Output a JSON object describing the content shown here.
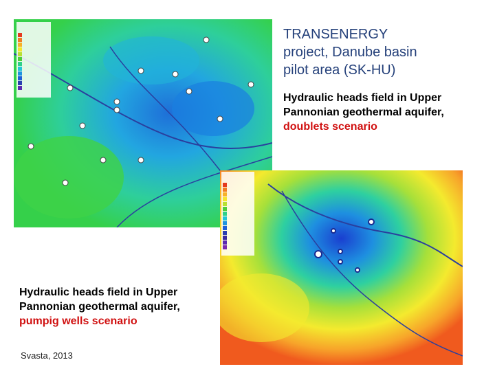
{
  "title": {
    "lines": [
      "TRANSENERGY",
      "project, Danube basin",
      "pilot area (SK-HU)"
    ]
  },
  "captions": [
    {
      "lines": [
        "Hydraulic heads field in Upper",
        "Pannonian geothermal aquifer,"
      ],
      "highlight": "doublets scenario"
    },
    {
      "lines": [
        "Hydraulic heads field in Upper",
        "Pannonian geothermal aquifer,"
      ],
      "highlight": "pumpig wells scenario"
    }
  ],
  "footer": {
    "source": "Svasta, 2013"
  }
}
